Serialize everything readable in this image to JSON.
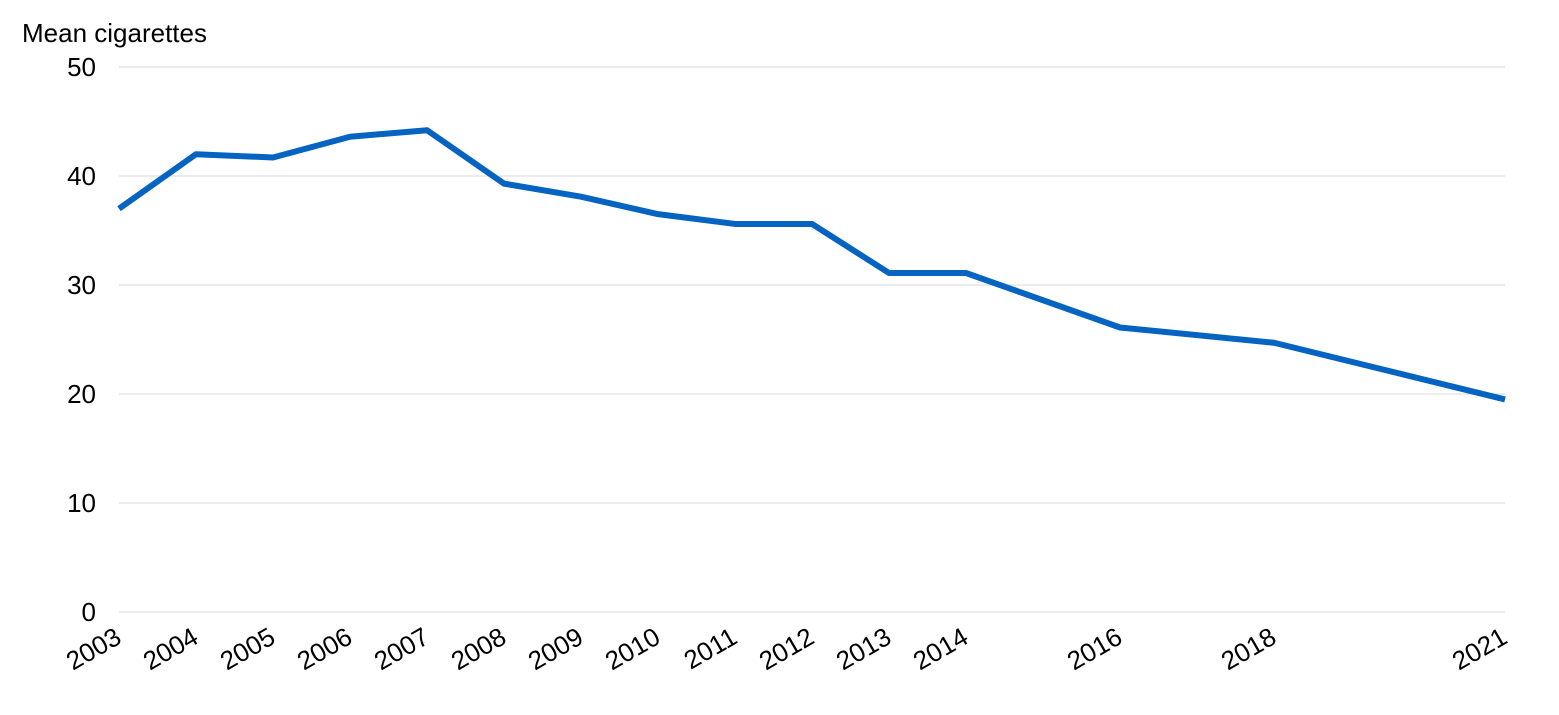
{
  "chart_data": {
    "type": "line",
    "ylabel": "Mean cigarettes",
    "xlabel": "",
    "title": "",
    "x": [
      "2003",
      "2004",
      "2005",
      "2006",
      "2007",
      "2008",
      "2009",
      "2010",
      "2011",
      "2012",
      "2013",
      "2014",
      "2016",
      "2018",
      "2021"
    ],
    "x_numeric": [
      2003,
      2004,
      2005,
      2006,
      2007,
      2008,
      2009,
      2010,
      2011,
      2012,
      2013,
      2014,
      2016,
      2018,
      2021
    ],
    "series": [
      {
        "name": "",
        "values": [
          37.0,
          42.0,
          41.7,
          43.6,
          44.2,
          39.3,
          38.1,
          36.5,
          35.6,
          35.6,
          31.1,
          31.1,
          26.1,
          24.7,
          19.5
        ],
        "color": "#0563c1"
      }
    ],
    "xlim": [
      2003,
      2021
    ],
    "ylim": [
      0,
      50
    ],
    "yticks": [
      0,
      10,
      20,
      30,
      40,
      50
    ],
    "grid": "horizontal",
    "legend": "none",
    "gridColor": "#d9d9d9"
  }
}
